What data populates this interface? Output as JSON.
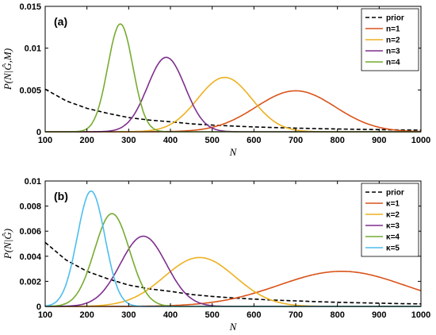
{
  "chart_data": [
    {
      "type": "line",
      "panel_label": "(a)",
      "xlabel": "N",
      "ylabel": "P(N|Ĝ,M)",
      "xlim": [
        100,
        1000
      ],
      "ylim": [
        0,
        0.015
      ],
      "xticks": [
        "100",
        "200",
        "300",
        "400",
        "500",
        "600",
        "700",
        "800",
        "900",
        "1000"
      ],
      "yticks": [
        "0",
        "0.005",
        "0.01",
        "0.015"
      ],
      "legend_position": "top-right",
      "series": [
        {
          "name": "prior",
          "kind": "prior",
          "color": "#000000",
          "dashed": true,
          "x": [
            100,
            150,
            200,
            250,
            300,
            350,
            400,
            450,
            500,
            550,
            600,
            650,
            700,
            750,
            800,
            850,
            900,
            950,
            1000
          ],
          "y": [
            0.0051,
            0.0037,
            0.0028,
            0.0022,
            0.0017,
            0.0014,
            0.0012,
            0.00095,
            0.0008,
            0.00068,
            0.00058,
            0.0005,
            0.00044,
            0.00038,
            0.00033,
            0.00029,
            0.00026,
            0.00022,
            0.0002
          ]
        },
        {
          "name": "n=1",
          "kind": "gauss",
          "color": "#D95319",
          "peak_x": 700,
          "peak_y": 0.0049,
          "width": 95
        },
        {
          "name": "n=2",
          "kind": "gauss",
          "color": "#EDB120",
          "peak_x": 530,
          "peak_y": 0.0065,
          "width": 65
        },
        {
          "name": "n=3",
          "kind": "gauss",
          "color": "#7E2F8E",
          "peak_x": 390,
          "peak_y": 0.0089,
          "width": 45
        },
        {
          "name": "n=4",
          "kind": "gauss",
          "color": "#77AC30",
          "peak_x": 280,
          "peak_y": 0.0129,
          "width": 30
        }
      ]
    },
    {
      "type": "line",
      "panel_label": "(b)",
      "xlabel": "N",
      "ylabel": "P(N|Ĝ)",
      "xlim": [
        100,
        1000
      ],
      "ylim": [
        0,
        0.01
      ],
      "xticks": [
        "100",
        "200",
        "300",
        "400",
        "500",
        "600",
        "700",
        "800",
        "900",
        "1000"
      ],
      "yticks": [
        "0",
        "0.002",
        "0.004",
        "0.006",
        "0.008",
        "0.01"
      ],
      "legend_position": "top-right",
      "series": [
        {
          "name": "prior",
          "kind": "prior",
          "color": "#000000",
          "dashed": true,
          "x": [
            100,
            150,
            200,
            250,
            300,
            350,
            400,
            450,
            500,
            550,
            600,
            650,
            700,
            750,
            800,
            850,
            900,
            950,
            1000
          ],
          "y": [
            0.0051,
            0.0037,
            0.0028,
            0.0022,
            0.0017,
            0.0014,
            0.0012,
            0.00095,
            0.0008,
            0.00068,
            0.00058,
            0.0005,
            0.00044,
            0.00038,
            0.00033,
            0.00029,
            0.00026,
            0.00022,
            0.0002
          ]
        },
        {
          "name": "κ=1",
          "kind": "gauss",
          "color": "#D95319",
          "peak_x": 810,
          "peak_y": 0.0028,
          "width": 150
        },
        {
          "name": "κ=2",
          "kind": "gauss",
          "color": "#EDB120",
          "peak_x": 470,
          "peak_y": 0.0039,
          "width": 85
        },
        {
          "name": "κ=3",
          "kind": "gauss",
          "color": "#7E2F8E",
          "peak_x": 335,
          "peak_y": 0.0056,
          "width": 55
        },
        {
          "name": "κ=4",
          "kind": "gauss",
          "color": "#77AC30",
          "peak_x": 260,
          "peak_y": 0.0074,
          "width": 42
        },
        {
          "name": "κ=5",
          "kind": "gauss",
          "color": "#4DBEEE",
          "peak_x": 210,
          "peak_y": 0.0092,
          "width": 33
        }
      ]
    }
  ]
}
